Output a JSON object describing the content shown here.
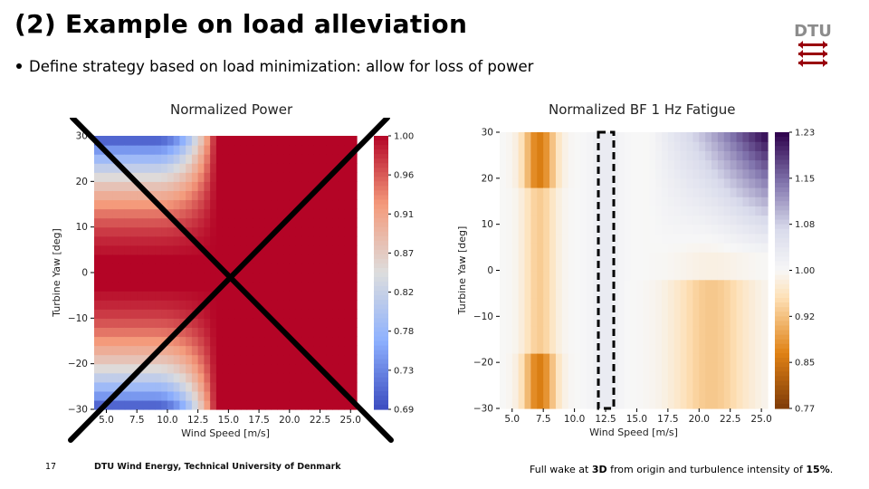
{
  "slide": {
    "title": "(2) Example on load alleviation",
    "bullet": "Define strategy based on load minimization: allow for loss of power",
    "page_number": "17",
    "footer_left": "DTU Wind Energy, Technical University of Denmark",
    "footer_right_parts": [
      "Full wake at ",
      "3D",
      " from origin and turbulence intensity of ",
      "15%",
      "."
    ],
    "logo_text": "DTU",
    "logo_icon": "dtu-logo-icon"
  },
  "chart_data": [
    {
      "type": "heatmap",
      "title": "Normalized Power",
      "xlabel": "Wind Speed [m/s]",
      "ylabel": "Turbine Yaw [deg]",
      "x_ticks": [
        "5.0",
        "7.5",
        "10.0",
        "12.5",
        "15.0",
        "17.5",
        "20.0",
        "22.5",
        "25.0"
      ],
      "y_ticks": [
        "30",
        "20",
        "10",
        "0",
        "−10",
        "−20",
        "−30"
      ],
      "xlim": [
        4,
        25.5
      ],
      "ylim": [
        -30,
        30
      ],
      "colorbar_ticks": [
        "1.00",
        "0.96",
        "0.91",
        "0.87",
        "0.82",
        "0.78",
        "0.73",
        "0.69"
      ],
      "colorbar_range": [
        0.69,
        1.0
      ],
      "colormap": "coolwarm",
      "crossed_out": true,
      "cross_color": "#000000"
    },
    {
      "type": "heatmap",
      "title": "Normalized BF 1 Hz Fatigue",
      "xlabel": "Wind Speed [m/s]",
      "ylabel": "Turbine Yaw [deg]",
      "x_ticks": [
        "5.0",
        "7.5",
        "10.0",
        "12.5",
        "15.0",
        "17.5",
        "20.0",
        "22.5",
        "25.0"
      ],
      "y_ticks": [
        "30",
        "20",
        "10",
        "0",
        "−10",
        "−20",
        "−30"
      ],
      "xlim": [
        4,
        25.5
      ],
      "ylim": [
        -30,
        30
      ],
      "colorbar_ticks": [
        "1.23",
        "1.15",
        "1.08",
        "1.00",
        "0.92",
        "0.85",
        "0.77"
      ],
      "colorbar_range": [
        0.77,
        1.23
      ],
      "colormap": "PuOr",
      "highlight_column": 12.5,
      "highlight_style": "dashed-box"
    }
  ]
}
